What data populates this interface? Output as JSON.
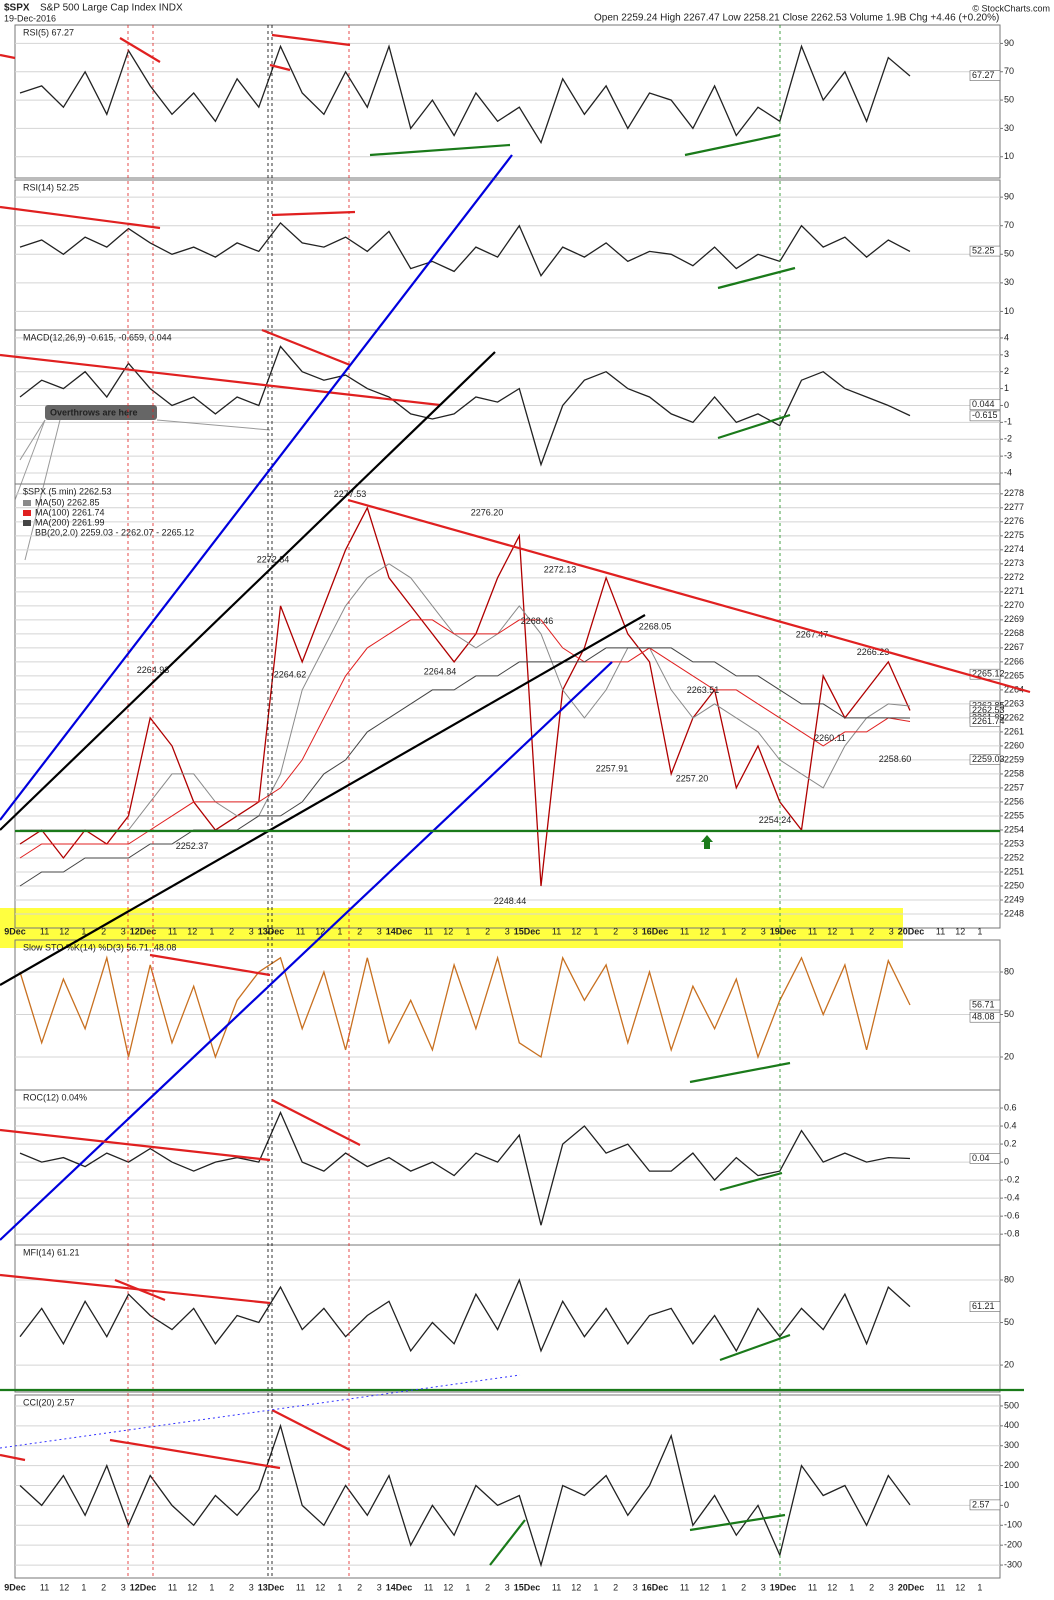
{
  "header": {
    "symbol": "$SPX",
    "name": "S&P 500 Large Cap Index INDX",
    "date": "19-Dec-2016",
    "quote": "Open 2259.24 High 2267.47 Low 2258.21 Close 2262.53 Volume 1.9B Chg +4.46 (+0.20%)",
    "credit": "© StockCharts.com"
  },
  "x_axis": {
    "labels": [
      "9Dec",
      "11",
      "12",
      "1",
      "2",
      "3",
      "12Dec",
      "11",
      "12",
      "1",
      "2",
      "3",
      "13Dec",
      "11",
      "12",
      "1",
      "2",
      "3",
      "14Dec",
      "11",
      "12",
      "1",
      "2",
      "3",
      "15Dec",
      "11",
      "12",
      "1",
      "2",
      "3",
      "16Dec",
      "11",
      "12",
      "1",
      "2",
      "3",
      "19Dec",
      "11",
      "12",
      "1",
      "2",
      "3",
      "20Dec",
      "11",
      "12",
      "1"
    ]
  },
  "chart_data": [
    {
      "type": "line",
      "title": "RSI(5) 67.27",
      "ylim": [
        -5,
        103
      ],
      "yticks": [
        90,
        70,
        50,
        30,
        10
      ],
      "grid": true,
      "series": [
        {
          "color": "#222222",
          "values": [
            55,
            60,
            45,
            70,
            40,
            85,
            60,
            40,
            55,
            35,
            65,
            45,
            88,
            55,
            40,
            70,
            45,
            88,
            30,
            50,
            25,
            55,
            35,
            45,
            20,
            65,
            40,
            60,
            30,
            55,
            50,
            30,
            60,
            25,
            45,
            35,
            88,
            50,
            70,
            35,
            80,
            67
          ]
        }
      ],
      "last_labels": [
        67.27
      ]
    },
    {
      "type": "line",
      "title": "RSI(14) 52.25",
      "ylim": [
        -3,
        102
      ],
      "yticks": [
        90,
        70,
        50,
        30,
        10
      ],
      "grid": true,
      "series": [
        {
          "color": "#222222",
          "values": [
            55,
            60,
            50,
            62,
            55,
            68,
            58,
            50,
            55,
            48,
            58,
            52,
            72,
            58,
            55,
            62,
            52,
            66,
            40,
            45,
            38,
            55,
            48,
            70,
            35,
            55,
            48,
            58,
            45,
            52,
            50,
            42,
            55,
            40,
            50,
            45,
            70,
            55,
            62,
            48,
            60,
            52
          ]
        }
      ],
      "last_labels": [
        52.25
      ]
    },
    {
      "type": "line",
      "title": "MACD(12,26,9) -0.615, -0.659, 0.044",
      "ylim": [
        -4.65,
        4.47
      ],
      "yticks": [
        4,
        3,
        2,
        1,
        0,
        -1,
        -2,
        -3,
        -4
      ],
      "grid": true,
      "annotation": "Overthrows are here",
      "series": [
        {
          "color": "#222222",
          "values": [
            0.5,
            1.5,
            1,
            2,
            0.5,
            2.5,
            1,
            0,
            0.5,
            -0.5,
            0.5,
            0,
            3.5,
            2,
            1.5,
            1.8,
            1,
            0.5,
            -0.5,
            -0.8,
            -0.5,
            0.5,
            0.2,
            1,
            -3.5,
            0,
            1.5,
            2,
            1,
            0.5,
            -0.5,
            -1,
            0.5,
            -1,
            -0.5,
            -1.2,
            1.5,
            2,
            1,
            0.5,
            0,
            -0.6
          ]
        }
      ],
      "last_labels": [
        0.044,
        -0.615
      ]
    },
    {
      "type": "line",
      "title": "$SPX (5 min) 2262.53",
      "bands_label": "BB(20,2.0) 2259.03 - 2262.07 - 2265.12",
      "ylim": [
        2247,
        2278.7
      ],
      "grid": true,
      "yticks": [
        2278,
        2277,
        2276,
        2275,
        2274,
        2273,
        2272,
        2271,
        2270,
        2269,
        2268,
        2267,
        2266,
        2265,
        2264,
        2263,
        2262,
        2261,
        2260,
        2259,
        2258,
        2257,
        2256,
        2255,
        2254,
        2253,
        2252,
        2251,
        2250,
        2249,
        2248
      ],
      "series": [
        {
          "color": "#b00000",
          "values": [
            2253,
            2254,
            2252,
            2254,
            2253,
            2255,
            2262,
            2260,
            2256,
            2254,
            2255,
            2256,
            2270,
            2266,
            2270,
            2274,
            2277,
            2272,
            2270,
            2268,
            2266,
            2268,
            2272,
            2275,
            2250,
            2264,
            2267,
            2272,
            2268,
            2266,
            2258,
            2262,
            2264,
            2257,
            2260,
            2256,
            2254,
            2265,
            2262,
            2264,
            2266,
            2262.53
          ]
        },
        {
          "name": "MA(50) 2262.85",
          "color": "#8a8a8a",
          "values": [
            2254,
            2254,
            2254,
            2254,
            2254,
            2254,
            2256,
            2258,
            2258,
            2256,
            2255,
            2255,
            2258,
            2264,
            2267,
            2270,
            2272,
            2273,
            2272,
            2270,
            2268,
            2267,
            2268,
            2270,
            2268,
            2264,
            2262,
            2264,
            2267,
            2267,
            2264,
            2262,
            2263,
            2262,
            2261,
            2259,
            2258,
            2257,
            2260,
            2262,
            2263,
            2262.85
          ]
        },
        {
          "name": "MA(100) 2261.74",
          "color": "#e02020",
          "values": [
            2252,
            2253,
            2253,
            2253,
            2253,
            2253,
            2254,
            2255,
            2256,
            2256,
            2256,
            2256,
            2257,
            2259,
            2262,
            2265,
            2267,
            2268,
            2269,
            2269,
            2268,
            2268,
            2268,
            2269,
            2269,
            2267,
            2266,
            2266,
            2266,
            2267,
            2266,
            2265,
            2264,
            2264,
            2263,
            2262,
            2261,
            2260,
            2261,
            2261,
            2262,
            2261.74
          ]
        },
        {
          "name": "MA(200) 2261.99",
          "color": "#444444",
          "values": [
            2250,
            2251,
            2251,
            2252,
            2252,
            2252,
            2253,
            2253,
            2254,
            2254,
            2254,
            2255,
            2255,
            2256,
            2258,
            2259,
            2261,
            2262,
            2263,
            2264,
            2264,
            2265,
            2265,
            2266,
            2266,
            2266,
            2266,
            2267,
            2267,
            2267,
            2267,
            2266,
            2266,
            2265,
            2265,
            2264,
            2263,
            2263,
            2262,
            2262,
            2262,
            2261.99
          ]
        }
      ],
      "annotations": [
        2277.53,
        {
          "value": 2276.2,
          "label": "2276.20"
        },
        2272.84,
        2272.13,
        2268.46,
        2268.05,
        2267.47,
        2266.23,
        2264.93,
        2264.62,
        2264.84,
        2263.51,
        2260.11,
        {
          "value": 2258.6,
          "label": "2258.60"
        },
        2257.91,
        {
          "value": 2257.2,
          "label": "2257.20"
        },
        2254.24,
        2252.37,
        2248.44
      ],
      "last_labels": [
        2265.12,
        2262.85,
        2262.53,
        2261.99,
        2261.74,
        2259.03
      ]
    },
    {
      "type": "line",
      "title": "Slow STO %K(14) %D(3) 56.71, 48.08",
      "ylim": [
        -3.3,
        102.6
      ],
      "yticks": [
        80,
        50,
        20
      ],
      "grid": true,
      "series": [
        {
          "color": "#c87020",
          "values": [
            80,
            30,
            75,
            40,
            90,
            20,
            85,
            30,
            70,
            20,
            60,
            80,
            90,
            40,
            80,
            25,
            90,
            30,
            60,
            25,
            85,
            40,
            90,
            30,
            20,
            90,
            60,
            85,
            30,
            80,
            25,
            70,
            40,
            75,
            20,
            60,
            90,
            50,
            85,
            25,
            88,
            56.71
          ]
        }
      ],
      "last_labels": [
        56.71,
        48.08
      ]
    },
    {
      "type": "line",
      "title": "ROC(12) 0.04%",
      "ylim": [
        -0.92,
        0.8
      ],
      "yticks": [
        0.6,
        0.4,
        0.2,
        0,
        -0.2,
        -0.4,
        -0.6,
        -0.8
      ],
      "grid": true,
      "series": [
        {
          "color": "#222222",
          "values": [
            0.1,
            0,
            0.05,
            -0.05,
            0.1,
            0,
            0.15,
            0,
            -0.1,
            0,
            0.05,
            0,
            0.55,
            0,
            -0.1,
            0.1,
            -0.05,
            0.05,
            -0.1,
            0,
            -0.15,
            0.1,
            0,
            0.3,
            -0.7,
            0.2,
            0.4,
            0.1,
            0.2,
            -0.1,
            -0.1,
            0.1,
            -0.2,
            0.05,
            -0.15,
            -0.1,
            0.35,
            0,
            0.1,
            0,
            0.05,
            0.04
          ]
        }
      ],
      "last_labels": [
        0.04
      ]
    },
    {
      "type": "line",
      "title": "MFI(14) 61.21",
      "ylim": [
        1,
        104.7
      ],
      "yticks": [
        80,
        50,
        20
      ],
      "grid": true,
      "series": [
        {
          "color": "#222222",
          "values": [
            40,
            60,
            35,
            65,
            40,
            70,
            55,
            45,
            60,
            35,
            55,
            50,
            75,
            45,
            60,
            40,
            55,
            65,
            30,
            50,
            35,
            70,
            45,
            80,
            30,
            65,
            40,
            60,
            35,
            55,
            60,
            35,
            55,
            30,
            60,
            40,
            60,
            45,
            70,
            35,
            75,
            61.21
          ]
        }
      ],
      "last_labels": [
        61.21
      ]
    },
    {
      "type": "line",
      "title": "CCI(20) 2.57",
      "ylim": [
        -365,
        555
      ],
      "yticks": [
        500,
        400,
        300,
        200,
        100,
        0,
        -100,
        -200,
        -300
      ],
      "grid": true,
      "series": [
        {
          "color": "#222222",
          "values": [
            100,
            0,
            150,
            -50,
            200,
            -100,
            150,
            0,
            -100,
            50,
            -50,
            80,
            400,
            0,
            -100,
            100,
            -50,
            150,
            -200,
            0,
            -150,
            100,
            0,
            50,
            -300,
            100,
            50,
            150,
            -50,
            100,
            350,
            -100,
            50,
            -150,
            0,
            -250,
            200,
            50,
            100,
            -100,
            150,
            2.57
          ]
        }
      ],
      "last_labels": [
        2.57
      ]
    }
  ]
}
